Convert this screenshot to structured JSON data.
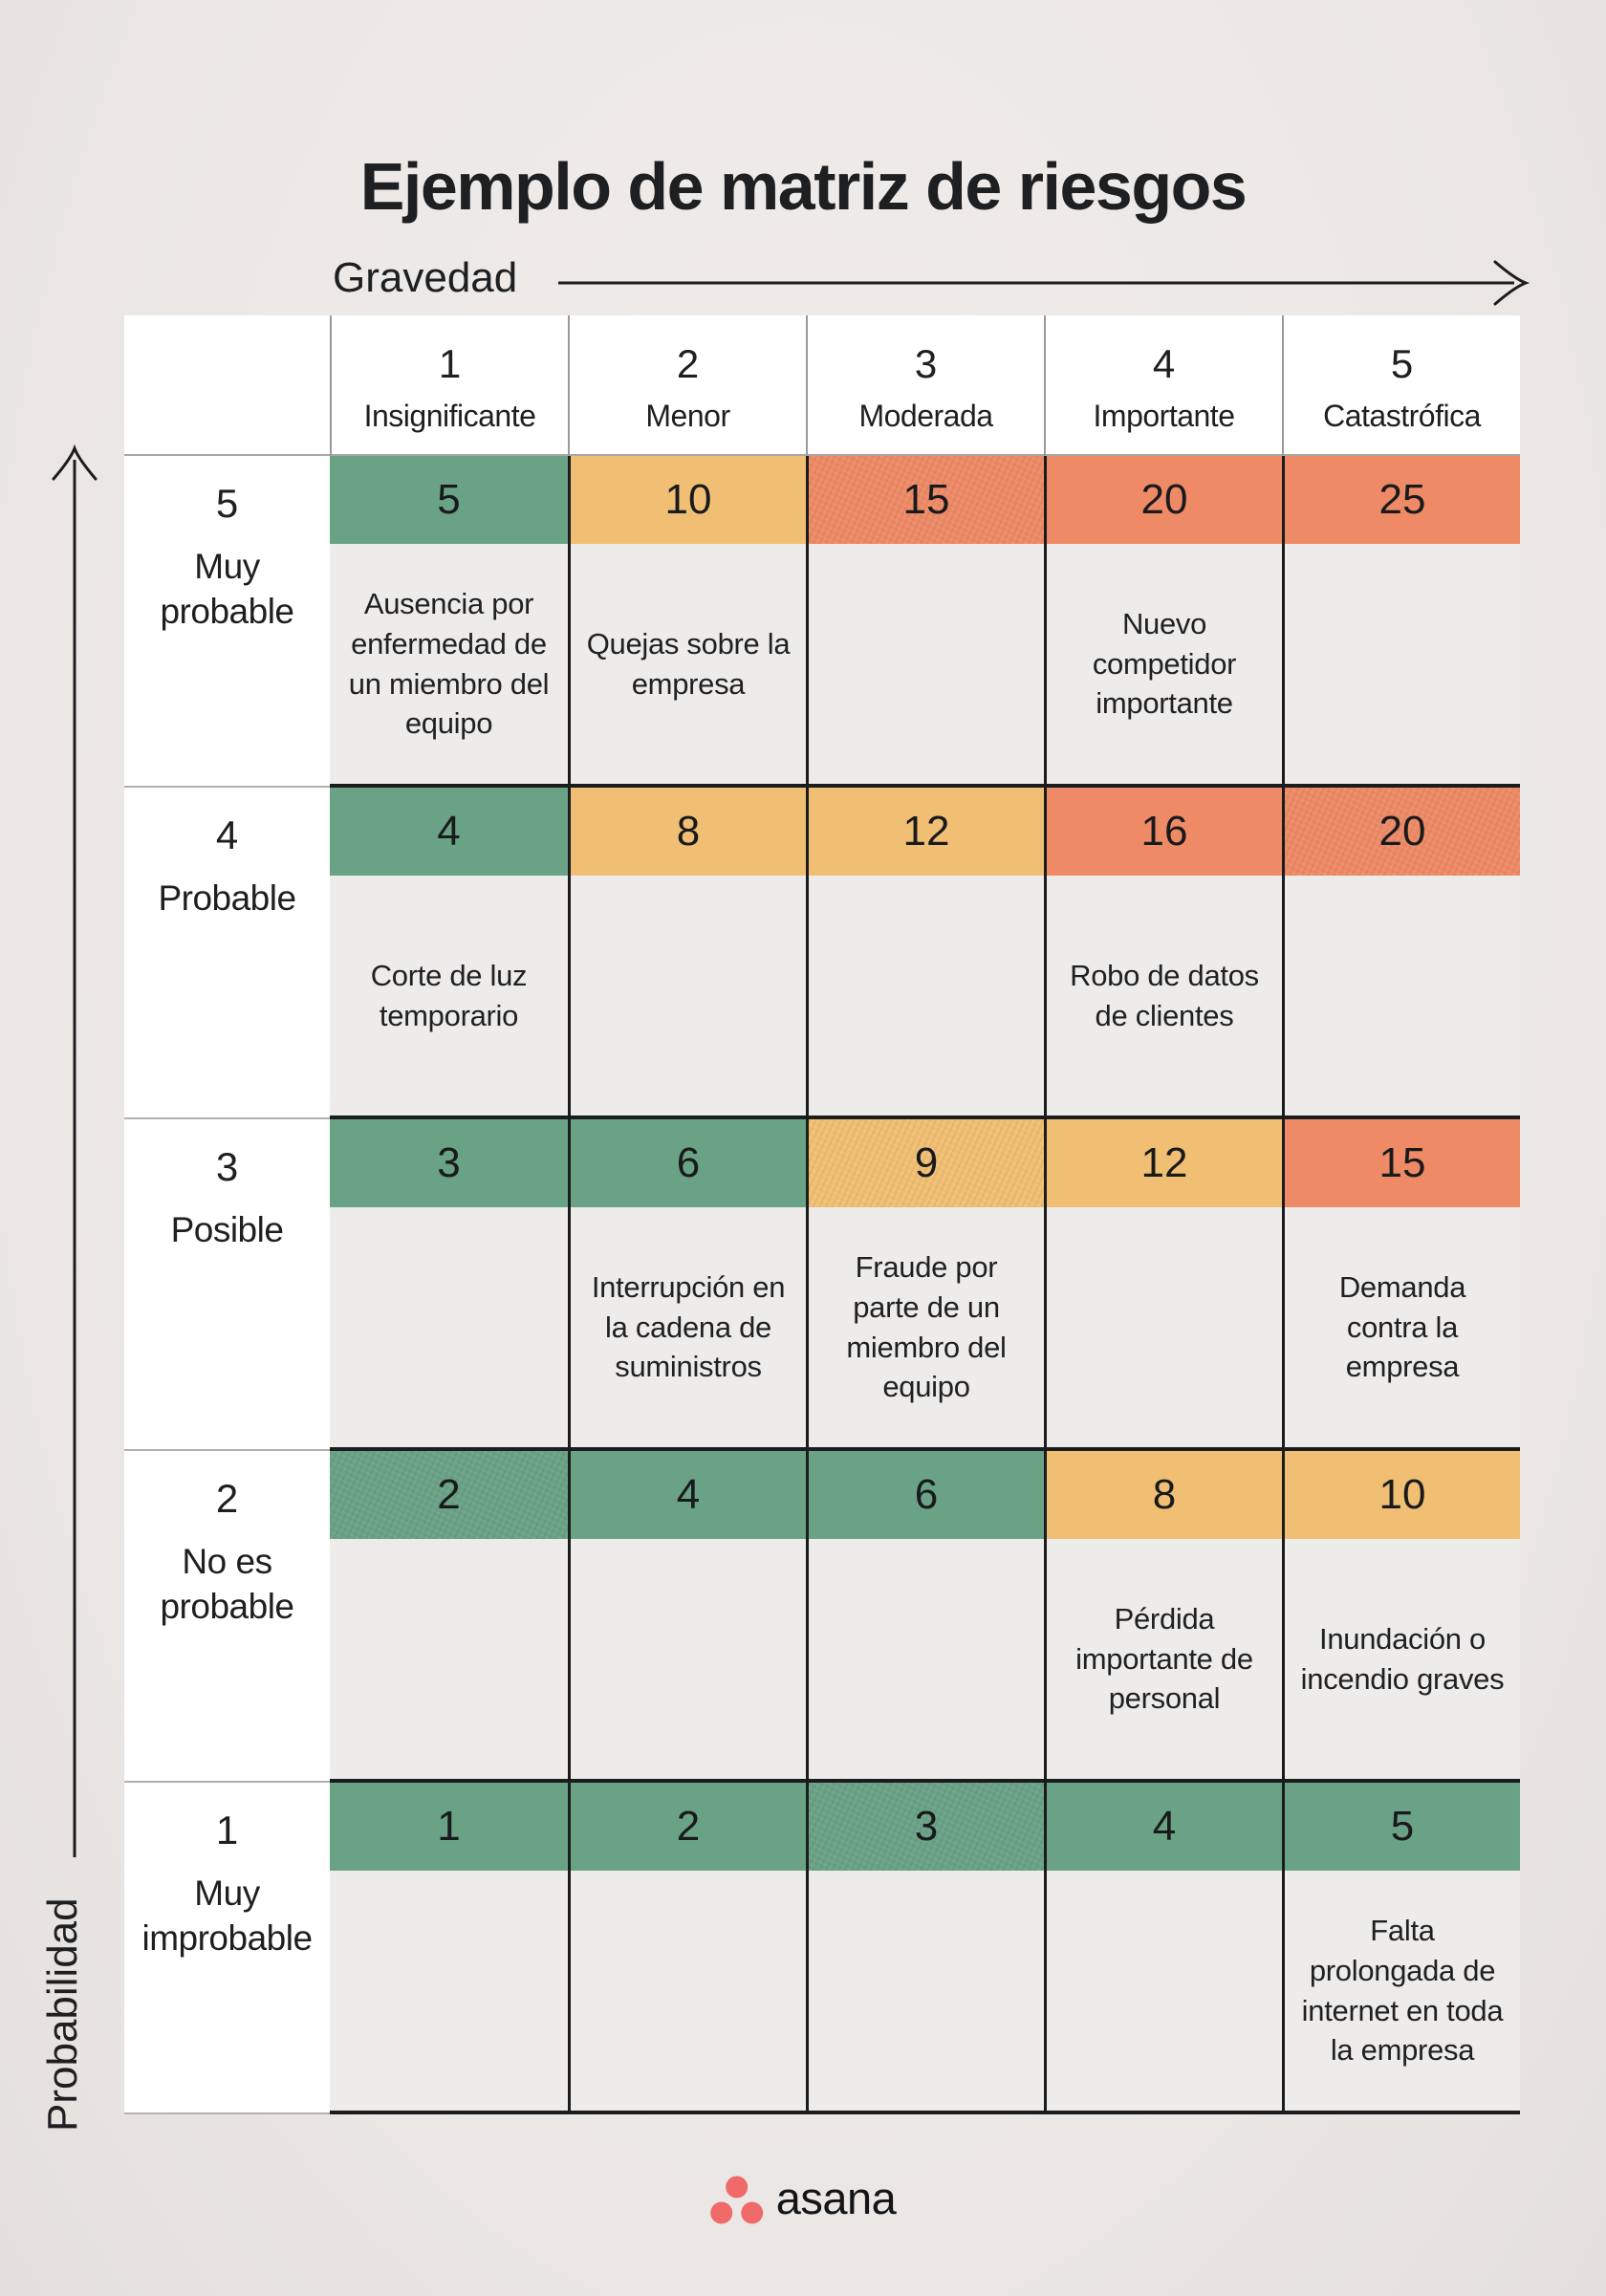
{
  "page": {
    "title": "Ejemplo de matriz de riesgos",
    "background": "#EBE8E6",
    "text_color": "#1E1F21"
  },
  "axes": {
    "x": {
      "label": "Gravedad"
    },
    "y": {
      "label": "Probabilidad"
    }
  },
  "legend_colors": {
    "green": "#6AA286",
    "yellow": "#F1BF73",
    "red": "#EE8A66"
  },
  "matrix": {
    "columns": [
      {
        "num": "1",
        "label": "Insignificante"
      },
      {
        "num": "2",
        "label": "Menor"
      },
      {
        "num": "3",
        "label": "Moderada"
      },
      {
        "num": "4",
        "label": "Importante"
      },
      {
        "num": "5",
        "label": "Catastrófica"
      }
    ],
    "rows": [
      {
        "num": "5",
        "label": "Muy probable",
        "cells": [
          {
            "value": "5",
            "level": "green",
            "desc": "Ausencia por enfermedad de un miembro del equipo",
            "textured": false
          },
          {
            "value": "10",
            "level": "yellow",
            "desc": "Quejas sobre la empresa",
            "textured": false
          },
          {
            "value": "15",
            "level": "red",
            "desc": "",
            "textured": true
          },
          {
            "value": "20",
            "level": "red",
            "desc": "Nuevo competidor importante",
            "textured": false
          },
          {
            "value": "25",
            "level": "red",
            "desc": "",
            "textured": false
          }
        ]
      },
      {
        "num": "4",
        "label": "Probable",
        "cells": [
          {
            "value": "4",
            "level": "green",
            "desc": "Corte de luz temporario",
            "textured": false
          },
          {
            "value": "8",
            "level": "yellow",
            "desc": "",
            "textured": false
          },
          {
            "value": "12",
            "level": "yellow",
            "desc": "",
            "textured": false
          },
          {
            "value": "16",
            "level": "red",
            "desc": "Robo de datos de clientes",
            "textured": false
          },
          {
            "value": "20",
            "level": "red",
            "desc": "",
            "textured": true
          }
        ]
      },
      {
        "num": "3",
        "label": "Posible",
        "cells": [
          {
            "value": "3",
            "level": "green",
            "desc": "",
            "textured": false
          },
          {
            "value": "6",
            "level": "green",
            "desc": "Interrupción en la cadena de suministros",
            "textured": false
          },
          {
            "value": "9",
            "level": "yellow",
            "desc": "Fraude por parte de un miembro del equipo",
            "textured": true
          },
          {
            "value": "12",
            "level": "yellow",
            "desc": "",
            "textured": false
          },
          {
            "value": "15",
            "level": "red",
            "desc": "Demanda contra la empresa",
            "textured": false
          }
        ]
      },
      {
        "num": "2",
        "label": "No es probable",
        "cells": [
          {
            "value": "2",
            "level": "green",
            "desc": "",
            "textured": true
          },
          {
            "value": "4",
            "level": "green",
            "desc": "",
            "textured": false
          },
          {
            "value": "6",
            "level": "green",
            "desc": "",
            "textured": false
          },
          {
            "value": "8",
            "level": "yellow",
            "desc": "Pérdida importante de personal",
            "textured": false
          },
          {
            "value": "10",
            "level": "yellow",
            "desc": "Inundación o incendio graves",
            "textured": false
          }
        ]
      },
      {
        "num": "1",
        "label": "Muy improbable",
        "cells": [
          {
            "value": "1",
            "level": "green",
            "desc": "",
            "textured": false
          },
          {
            "value": "2",
            "level": "green",
            "desc": "",
            "textured": false
          },
          {
            "value": "3",
            "level": "green",
            "desc": "",
            "textured": true
          },
          {
            "value": "4",
            "level": "green",
            "desc": "",
            "textured": false
          },
          {
            "value": "5",
            "level": "green",
            "desc": "Falta prolongada de internet en toda la empresa",
            "textured": false
          }
        ]
      }
    ]
  },
  "footer": {
    "brand": "asana",
    "logo_color": "#F06A6A"
  }
}
